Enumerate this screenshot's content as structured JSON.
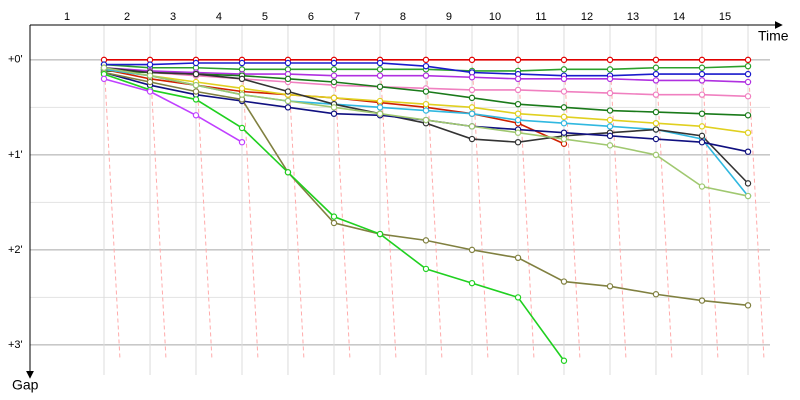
{
  "chart_data": {
    "type": "line",
    "x_label": "Time",
    "y_label": "Gap",
    "x": [
      1000,
      1622,
      2243,
      2865,
      3486,
      4108,
      4730,
      5351,
      5973,
      6595,
      7216,
      7838,
      8459,
      9081,
      9703
    ],
    "xlim": [
      0,
      10000
    ],
    "xticks": [
      {
        "value": 1000,
        "label": "1"
      },
      {
        "value": 1622,
        "label": "2"
      },
      {
        "value": 2243,
        "label": "3"
      },
      {
        "value": 2865,
        "label": "4"
      },
      {
        "value": 3486,
        "label": "5"
      },
      {
        "value": 4108,
        "label": "6"
      },
      {
        "value": 4730,
        "label": "7"
      },
      {
        "value": 5351,
        "label": "8"
      },
      {
        "value": 5973,
        "label": "9"
      },
      {
        "value": 6595,
        "label": "10"
      },
      {
        "value": 7216,
        "label": "11"
      },
      {
        "value": 7838,
        "label": "12"
      },
      {
        "value": 8459,
        "label": "13"
      },
      {
        "value": 9081,
        "label": "14"
      },
      {
        "value": 9703,
        "label": "15"
      }
    ],
    "ylim": [
      -22,
      199
    ],
    "yticks": [
      {
        "value": 0,
        "label": "+0'"
      },
      {
        "value": 60,
        "label": "+1'"
      },
      {
        "value": 120,
        "label": "+2'"
      },
      {
        "value": 180,
        "label": "+3'"
      }
    ],
    "minor_yticks": [
      30,
      90,
      150
    ],
    "grid": true,
    "series": [
      {
        "color": "#e00000",
        "values": [
          0,
          0,
          0,
          0,
          0,
          0,
          0,
          0,
          0,
          0,
          0,
          0,
          0,
          0,
          0
        ]
      },
      {
        "color": "#2ca02c",
        "values": [
          3,
          5,
          5,
          6,
          6,
          6,
          6,
          6,
          7,
          7,
          6,
          6,
          5,
          5,
          4
        ]
      },
      {
        "color": "#1a1acc",
        "values": [
          3,
          3,
          2,
          2,
          2,
          2,
          2,
          4,
          8,
          9,
          10,
          10,
          9,
          9,
          9
        ]
      },
      {
        "color": "#b030e0",
        "values": [
          5,
          7,
          8,
          9,
          9,
          10,
          10,
          10,
          11,
          12,
          12,
          12,
          13,
          13,
          14
        ]
      },
      {
        "color": "#f080c0",
        "values": [
          6,
          8,
          10,
          12,
          14,
          16,
          17,
          18,
          19,
          19,
          20,
          21,
          22,
          22,
          23
        ]
      },
      {
        "color": "#1a7a1a",
        "values": [
          7,
          8,
          9,
          10,
          12,
          14,
          17,
          20,
          24,
          28,
          30,
          32,
          33,
          34,
          35
        ]
      },
      {
        "color": "#d02000",
        "values": [
          6,
          12,
          16,
          20,
          22,
          24,
          27,
          30,
          34,
          40,
          53,
          null,
          null,
          null,
          null
        ]
      },
      {
        "color": "#e0d020",
        "values": [
          6,
          10,
          14,
          18,
          22,
          24,
          26,
          28,
          30,
          34,
          36,
          38,
          40,
          42,
          46
        ]
      },
      {
        "color": "#30b8e0",
        "values": [
          6,
          10,
          16,
          22,
          26,
          28,
          30,
          32,
          34,
          38,
          40,
          42,
          44,
          50,
          86
        ]
      },
      {
        "color": "#333333",
        "values": [
          5,
          8,
          9,
          12,
          20,
          28,
          34,
          40,
          50,
          52,
          48,
          46,
          44,
          48,
          78
        ]
      },
      {
        "color": "#101080",
        "values": [
          8,
          16,
          22,
          26,
          30,
          34,
          35,
          38,
          42,
          44,
          46,
          48,
          50,
          52,
          58
        ]
      },
      {
        "color": "#808040",
        "values": [
          8,
          14,
          20,
          25,
          71,
          103,
          110,
          114,
          120,
          125,
          140,
          143,
          148,
          152,
          155
        ]
      },
      {
        "color": "#20d020",
        "values": [
          9,
          19,
          25,
          43,
          71,
          99,
          110,
          132,
          141,
          150,
          190,
          null,
          null,
          null,
          null
        ]
      },
      {
        "color": "#c040ff",
        "values": [
          12,
          20,
          35,
          52,
          null,
          null,
          null,
          null,
          null,
          null,
          null,
          null,
          null,
          null,
          null
        ]
      },
      {
        "color": "#a0c870",
        "values": [
          5,
          10,
          16,
          22,
          26,
          30,
          34,
          38,
          42,
          46,
          50,
          54,
          60,
          80,
          86
        ]
      }
    ]
  }
}
